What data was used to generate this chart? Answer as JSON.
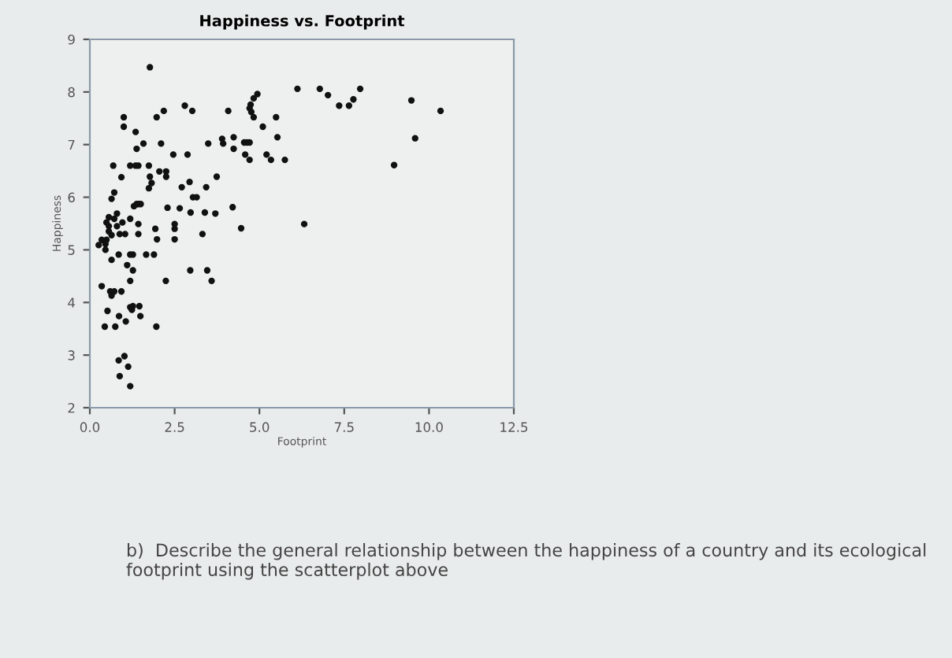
{
  "chart_data": {
    "type": "scatter",
    "title": "Happiness vs. Footprint",
    "xlabel": "Footprint",
    "ylabel": "Happiness",
    "x": [
      1.77,
      1.0,
      1.0,
      1.97,
      2.18,
      2.8,
      3.02,
      4.08,
      1.35,
      1.58,
      1.38,
      2.1,
      2.46,
      2.88,
      0.69,
      1.19,
      1.35,
      1.43,
      1.74,
      0.93,
      2.05,
      2.25,
      2.25,
      1.77,
      1.82,
      1.74,
      0.72,
      0.64,
      1.38,
      1.43,
      1.5,
      2.71,
      2.94,
      3.04,
      3.15,
      3.43,
      3.74,
      3.49,
      3.9,
      3.93,
      4.24,
      4.24,
      4.55,
      4.63,
      4.71,
      4.58,
      4.71,
      5.21,
      5.34,
      5.75,
      5.53,
      5.1,
      5.49,
      4.94,
      4.83,
      4.74,
      4.71,
      4.76,
      4.83,
      1.3,
      2.29,
      2.65,
      2.97,
      3.39,
      3.7,
      4.21,
      0.56,
      0.8,
      0.72,
      0.56,
      0.49,
      0.8,
      0.96,
      0.56,
      0.64,
      0.88,
      1.19,
      1.43,
      1.04,
      1.43,
      1.93,
      2.5,
      2.5,
      2.5,
      1.98,
      3.32,
      4.46,
      0.35,
      0.26,
      0.46,
      0.49,
      0.46,
      0.64,
      0.85,
      1.19,
      1.27,
      1.66,
      1.89,
      1.1,
      1.27,
      1.19,
      2.24,
      2.96,
      3.46,
      3.59,
      0.35,
      0.6,
      0.64,
      0.72,
      0.93,
      1.19,
      1.24,
      1.27,
      1.46,
      0.52,
      0.86,
      1.06,
      1.49,
      0.44,
      0.75,
      1.96,
      1.02,
      0.85,
      1.13,
      0.88,
      1.19,
      6.12,
      6.78,
      7.02,
      7.35,
      7.64,
      7.77,
      7.97,
      9.48,
      10.34,
      9.59,
      8.97,
      6.32
    ],
    "values": [
      8.47,
      7.52,
      7.34,
      7.52,
      7.64,
      7.74,
      7.64,
      7.64,
      7.24,
      7.02,
      6.92,
      7.02,
      6.81,
      6.81,
      6.6,
      6.6,
      6.6,
      6.6,
      6.6,
      6.38,
      6.49,
      6.49,
      6.39,
      6.39,
      6.27,
      6.17,
      6.09,
      5.97,
      5.87,
      5.87,
      5.87,
      6.19,
      6.29,
      6.0,
      6.0,
      6.19,
      6.39,
      7.02,
      7.11,
      7.02,
      7.14,
      6.92,
      7.04,
      7.04,
      7.04,
      6.81,
      6.71,
      6.81,
      6.71,
      6.71,
      7.14,
      7.34,
      7.52,
      7.96,
      7.88,
      7.76,
      7.69,
      7.62,
      7.52,
      5.83,
      5.8,
      5.79,
      5.71,
      5.71,
      5.69,
      5.81,
      5.62,
      5.69,
      5.59,
      5.45,
      5.52,
      5.45,
      5.52,
      5.35,
      5.28,
      5.3,
      5.59,
      5.49,
      5.3,
      5.3,
      5.4,
      5.49,
      5.4,
      5.2,
      5.2,
      5.3,
      5.41,
      5.19,
      5.09,
      5.11,
      5.19,
      5.0,
      4.81,
      4.91,
      4.91,
      4.91,
      4.91,
      4.91,
      4.71,
      4.61,
      4.41,
      4.41,
      4.61,
      4.61,
      4.41,
      4.31,
      4.21,
      4.13,
      4.21,
      4.21,
      3.91,
      3.86,
      3.93,
      3.93,
      3.84,
      3.74,
      3.64,
      3.74,
      3.54,
      3.54,
      3.54,
      2.98,
      2.9,
      2.78,
      2.6,
      2.41,
      8.06,
      8.06,
      7.94,
      7.74,
      7.74,
      7.86,
      8.06,
      7.84,
      7.64,
      7.12,
      6.61,
      5.49
    ],
    "color": "#111111",
    "marker": "circle",
    "xlim": [
      0,
      12.5
    ],
    "xticks": [
      {
        "value": 0,
        "label": "0.0"
      },
      {
        "value": 2.5,
        "label": "2.5"
      },
      {
        "value": 5,
        "label": "5.0"
      },
      {
        "value": 7.5,
        "label": "7.5"
      },
      {
        "value": 10,
        "label": "10.0"
      },
      {
        "value": 12.5,
        "label": "12.5"
      }
    ],
    "ylim": [
      2,
      9
    ],
    "yticks": [
      2,
      3,
      4,
      5,
      6,
      7,
      8,
      9
    ],
    "grid": false,
    "annotations": [
      "b)  Describe the general relationship between the happiness of a country and its ecological footprint using the scatterplot above"
    ]
  }
}
